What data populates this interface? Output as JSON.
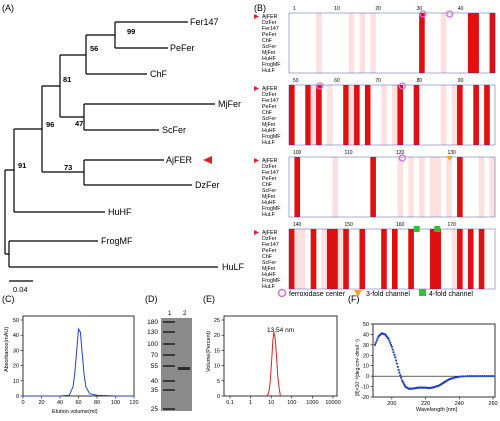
{
  "colors": {
    "tree": "#000000",
    "accent": "#e02020",
    "conserved_bg": "#e01010",
    "similar_bg": "#ffe0e0",
    "feroxidase": "#d070e0",
    "threefold": "#f0a030",
    "fourfold": "#30c030",
    "blue_trace": "#1f3fd0"
  },
  "panel_a": {
    "label": "(A)",
    "taxa": [
      "Fer147",
      "PeFer",
      "ChF",
      "MjFer",
      "ScFer",
      "AjFER",
      "DzFer",
      "HuHF",
      "FrogMF",
      "HuLF"
    ],
    "highlight": "AjFER",
    "bootstrap": [
      "99",
      "56",
      "81",
      "47",
      "96",
      "73",
      "91"
    ],
    "scale": "0.04"
  },
  "panel_b": {
    "label": "(B)",
    "species": [
      "AjFER",
      "DzFer",
      "Fer147",
      "PeFer",
      "ChF",
      "ScFer",
      "MjFer",
      "HuHF",
      "FrogMF",
      "HuLF"
    ],
    "blocks": [
      {
        "ticks": [
          "1",
          "10",
          "20",
          "30",
          "40"
        ]
      },
      {
        "ticks": [
          "50",
          "60",
          "70",
          "80",
          "90"
        ]
      },
      {
        "ticks": [
          "100",
          "110",
          "120",
          "130"
        ]
      },
      {
        "ticks": [
          "140",
          "150",
          "160",
          "170"
        ]
      }
    ],
    "legend": [
      "ferroxidase center",
      "3-fold channel",
      "4-fold channel"
    ]
  },
  "panel_c": {
    "label": "(C)",
    "ylabel": "Absorbance(mAU)",
    "xlabel": "Elution volume(ml)",
    "xticks": [
      "0",
      "20",
      "40",
      "60",
      "80",
      "100",
      "120"
    ],
    "yticks": [
      "0",
      "10",
      "20",
      "30",
      "40",
      "50"
    ]
  },
  "panel_d": {
    "label": "(D)",
    "lanes": [
      "1",
      "2"
    ],
    "markers": [
      "180",
      "130",
      "100",
      "70",
      "55",
      "40",
      "35",
      "25"
    ]
  },
  "panel_e": {
    "label": "(E)",
    "ylabel": "Volume(Percent)",
    "peak": "13.54 nm",
    "xticks": [
      "0.1",
      "1",
      "10",
      "100",
      "1000",
      "10000"
    ],
    "yticks": [
      "0",
      "5",
      "10",
      "15",
      "20",
      "25"
    ]
  },
  "panel_f": {
    "label": "(F)",
    "ylabel": "[θ]×10⁻³(deg·cm²·dmol⁻¹)",
    "xlabel": "Wavelength [nm]",
    "xticks": [
      "200",
      "220",
      "240",
      "260"
    ],
    "yticks": [
      "-20",
      "-10",
      "0",
      "10",
      "20",
      "30",
      "40",
      "50"
    ]
  },
  "chart_data": [
    {
      "type": "line",
      "panel": "C",
      "xlabel": "Elution volume(ml)",
      "ylabel": "Absorbance(mAU)",
      "xlim": [
        0,
        120
      ],
      "ylim": [
        0,
        50
      ],
      "x": [
        0,
        20,
        40,
        50,
        54,
        56,
        58,
        60,
        62,
        64,
        66,
        68,
        72,
        80,
        100,
        120
      ],
      "y": [
        0,
        0,
        0,
        0.5,
        6,
        15,
        30,
        44,
        42,
        28,
        14,
        6,
        1.5,
        0.5,
        0,
        0
      ]
    },
    {
      "type": "line",
      "panel": "E",
      "xlabel": "",
      "ylabel": "Volume(Percent)",
      "xscale": "log",
      "xlim": [
        0.1,
        10000
      ],
      "ylim": [
        0,
        25
      ],
      "x": [
        6,
        7,
        8,
        9,
        10,
        11,
        12,
        13.54,
        15,
        17,
        19,
        21,
        24,
        28
      ],
      "y": [
        0,
        0.5,
        2,
        5,
        9.5,
        14,
        18,
        21,
        20,
        16,
        11,
        6.5,
        3,
        0
      ]
    },
    {
      "type": "scatter",
      "panel": "F",
      "xlabel": "Wavelength [nm]",
      "ylabel": "[θ]×10⁻³(deg·cm²·dmol⁻¹)",
      "xlim": [
        190,
        260
      ],
      "ylim": [
        -20,
        50
      ],
      "x": [
        190,
        192,
        194,
        196,
        198,
        200,
        202,
        204,
        206,
        208,
        210,
        212,
        214,
        216,
        218,
        220,
        222,
        224,
        226,
        228,
        230,
        232,
        234,
        236,
        240,
        245,
        250,
        255,
        260
      ],
      "y": [
        30,
        38,
        41,
        40,
        36,
        28,
        18,
        6,
        -4,
        -10,
        -12,
        -12,
        -11.5,
        -11,
        -11,
        -11,
        -11.5,
        -11,
        -10,
        -9,
        -7,
        -5,
        -3,
        -2,
        -0.5,
        0,
        0,
        0,
        0
      ]
    }
  ]
}
